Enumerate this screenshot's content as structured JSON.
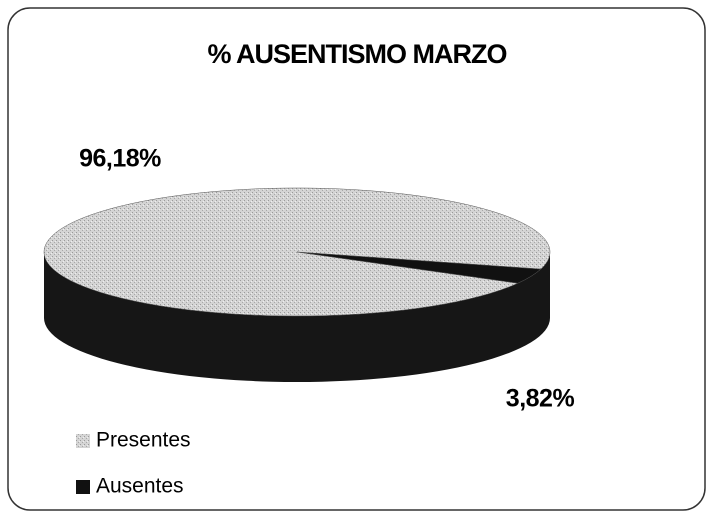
{
  "chart_data": {
    "type": "pie",
    "title": "% AUSENTISMO MARZO",
    "categories": [
      "Presentes",
      "Ausentes"
    ],
    "values": [
      96.18,
      3.82
    ],
    "value_labels": [
      "96,18%",
      "3,82%"
    ],
    "colors": [
      "#cdcdcd",
      "#111111"
    ],
    "legend": "bottom-left"
  }
}
